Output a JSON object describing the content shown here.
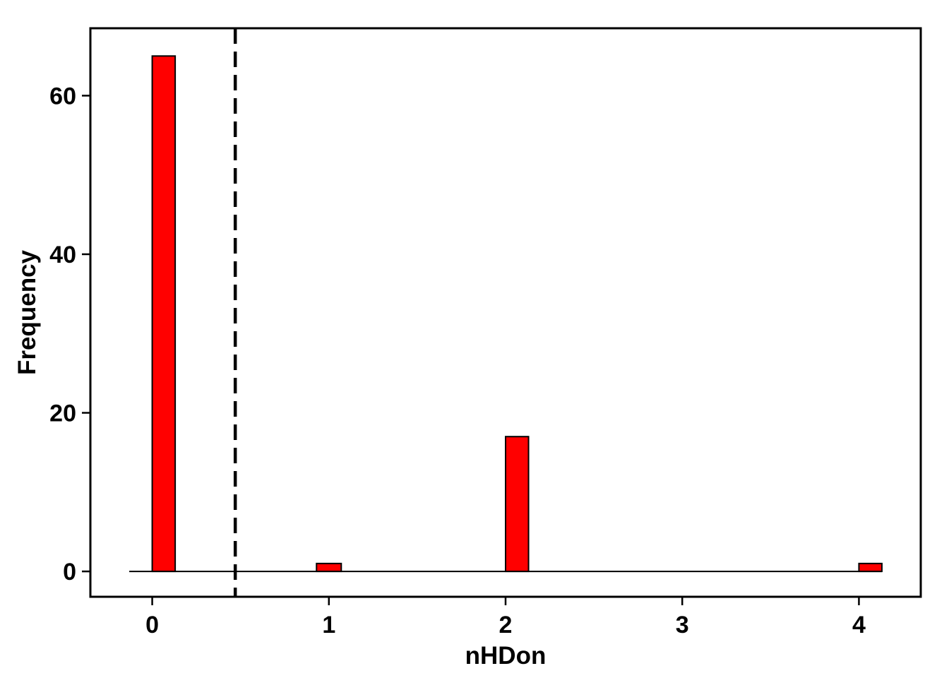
{
  "chart_data": {
    "type": "bar",
    "title": "",
    "xlabel": "nHDon",
    "ylabel": "Frequency",
    "bar_color": "#ff0000",
    "bar_edge_color": "#000000",
    "x_ticks": [
      0,
      1,
      2,
      3,
      4
    ],
    "x_tick_labels": [
      "0",
      "1",
      "2",
      "3",
      "4"
    ],
    "y_ticks": [
      0,
      20,
      40,
      60
    ],
    "y_tick_labels": [
      "0",
      "20",
      "40",
      "60"
    ],
    "xlim": [
      -0.35,
      4.35
    ],
    "ylim": [
      -3.2,
      68.5
    ],
    "bins": [
      {
        "x_start": 0.0,
        "x_end": 0.13,
        "value": 65
      },
      {
        "x_start": 0.93,
        "x_end": 1.07,
        "value": 1
      },
      {
        "x_start": 2.0,
        "x_end": 2.13,
        "value": 17
      },
      {
        "x_start": 4.0,
        "x_end": 4.13,
        "value": 1
      }
    ],
    "baseline": {
      "x_start": -0.13,
      "x_end": 4.13,
      "y": 0
    },
    "threshold_line": {
      "x": 0.47,
      "style": "dashed",
      "color": "#000000"
    },
    "grid": false,
    "legend": "none"
  }
}
